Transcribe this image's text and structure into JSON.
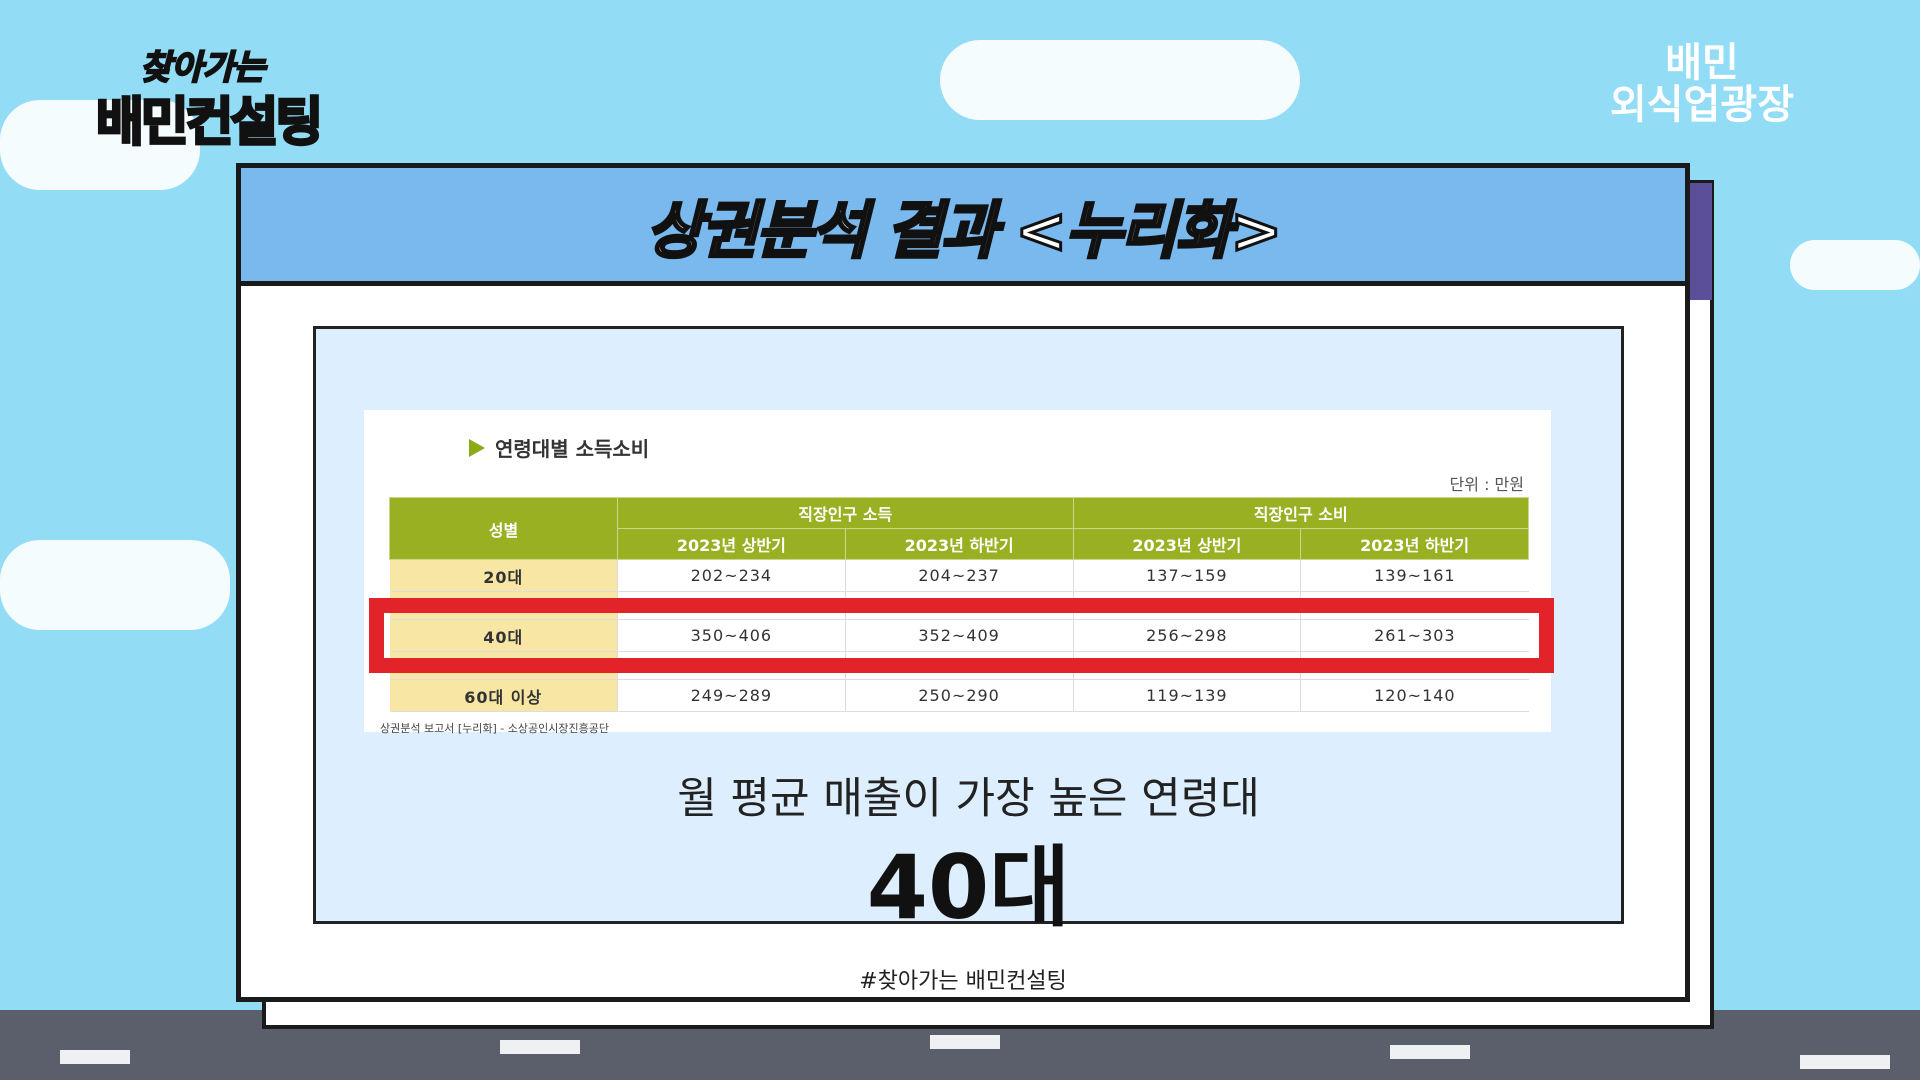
{
  "logos": {
    "left_line1": "찾아가는",
    "left_line2": "배민컨설팅",
    "right_line1": "배민",
    "right_line2": "외식업광장"
  },
  "slide": {
    "title": "상권분석 결과 <누리화>",
    "table_heading": "연령대별 소득소비",
    "unit": "단위 : 만원",
    "header": {
      "row_label": "성별",
      "group1": "직장인구 소득",
      "group2": "직장인구 소비",
      "periods": [
        "2023년 상반기",
        "2023년 하반기",
        "2023년 상반기",
        "2023년 하반기"
      ]
    },
    "rows": [
      {
        "age": "20대",
        "values": [
          "202~234",
          "204~237",
          "137~159",
          "139~161"
        ]
      },
      {
        "age": "40대",
        "values": [
          "350~406",
          "352~409",
          "256~298",
          "261~303"
        ],
        "highlighted": true
      },
      {
        "age": "60대 이상",
        "values": [
          "249~289",
          "250~290",
          "119~139",
          "120~140"
        ]
      }
    ],
    "source": "상권분석 보고서 [누리화] - 소상공인시장진흥공단",
    "subtitle": "월 평균 매출이 가장 높은 연령대",
    "highlight": "40대",
    "hashtag": "#찾아가는 배민컨설팅"
  },
  "colors": {
    "title_bar": "#7ab9ee",
    "header_green": "#98b022",
    "age_cell": "#f7e6a4",
    "highlight_box": "#e3232a",
    "panel": "#ddeefe",
    "sky": "#93dcf6"
  }
}
